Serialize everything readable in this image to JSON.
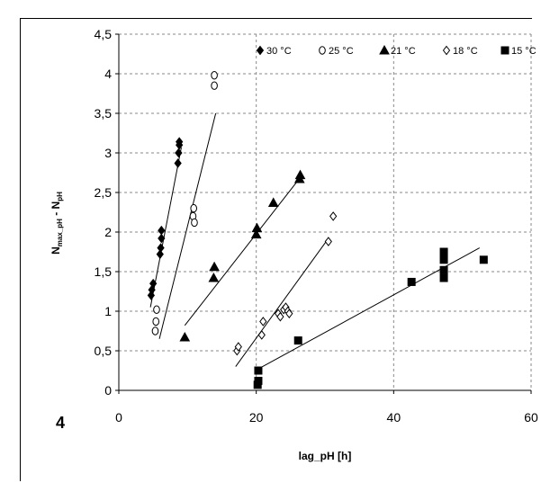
{
  "chart_data": {
    "type": "scatter",
    "panel_label": "4",
    "xlabel": "lag_pH [h]",
    "ylabel": "N",
    "ylabel_sub1": "max_pH",
    "ylabel_mid": " - N",
    "ylabel_sub2": "pH",
    "xlim": [
      0,
      60
    ],
    "ylim": [
      0,
      4.5
    ],
    "xticks": [
      "0",
      "20",
      "40",
      "60"
    ],
    "yticks": [
      "0",
      "0,5",
      "1",
      "1,5",
      "2",
      "2,5",
      "3",
      "3,5",
      "4",
      "4,5"
    ],
    "grid": "dashed",
    "legend_position": "top",
    "series": [
      {
        "name": "30 °C",
        "marker": "diamond-filled",
        "points": [
          [
            4.7,
            1.2
          ],
          [
            4.8,
            1.27
          ],
          [
            5,
            1.35
          ],
          [
            6,
            1.72
          ],
          [
            6.1,
            1.8
          ],
          [
            6.2,
            1.92
          ],
          [
            6.2,
            2.02
          ],
          [
            8.6,
            2.87
          ],
          [
            8.7,
            3.0
          ],
          [
            8.8,
            3.1
          ],
          [
            8.8,
            3.14
          ]
        ],
        "trend": [
          [
            4.6,
            1.05
          ],
          [
            9.1,
            3.07
          ]
        ]
      },
      {
        "name": "25 °C",
        "marker": "circle-open",
        "points": [
          [
            5.3,
            0.75
          ],
          [
            5.4,
            0.87
          ],
          [
            5.5,
            1.02
          ],
          [
            10.8,
            2.2
          ],
          [
            10.9,
            2.3
          ],
          [
            11,
            2.12
          ],
          [
            13.9,
            3.85
          ],
          [
            13.9,
            3.98
          ]
        ],
        "trend": [
          [
            5.9,
            0.65
          ],
          [
            14.1,
            3.5
          ]
        ]
      },
      {
        "name": "21 °C",
        "marker": "triangle-filled",
        "points": [
          [
            9.6,
            0.67
          ],
          [
            13.8,
            1.42
          ],
          [
            13.9,
            1.56
          ],
          [
            20,
            1.97
          ],
          [
            20.1,
            2.05
          ],
          [
            22.5,
            2.37
          ],
          [
            26.3,
            2.67
          ],
          [
            26.4,
            2.72
          ]
        ],
        "trend": [
          [
            9.6,
            0.82
          ],
          [
            26.5,
            2.7
          ]
        ]
      },
      {
        "name": "18 °C",
        "marker": "diamond-open",
        "points": [
          [
            17.2,
            0.5
          ],
          [
            17.4,
            0.55
          ],
          [
            20.8,
            0.7
          ],
          [
            21,
            0.87
          ],
          [
            23.2,
            0.97
          ],
          [
            23.5,
            0.93
          ],
          [
            24,
            1.02
          ],
          [
            24.3,
            1.05
          ],
          [
            24.6,
            1.0
          ],
          [
            24.8,
            0.97
          ],
          [
            30.5,
            1.88
          ],
          [
            31.2,
            2.2
          ]
        ],
        "trend": [
          [
            17,
            0.3
          ],
          [
            30.5,
            1.92
          ]
        ]
      },
      {
        "name": "15 °C",
        "marker": "square-filled",
        "points": [
          [
            20.2,
            0.07
          ],
          [
            20.3,
            0.12
          ],
          [
            20.3,
            0.25
          ],
          [
            26.1,
            0.63
          ],
          [
            42.6,
            1.37
          ],
          [
            47.3,
            1.42
          ],
          [
            47.3,
            1.52
          ],
          [
            47.3,
            1.65
          ],
          [
            47.3,
            1.75
          ],
          [
            53.1,
            1.65
          ]
        ],
        "trend": [
          [
            20.5,
            0.28
          ],
          [
            52.5,
            1.8
          ]
        ]
      }
    ]
  }
}
